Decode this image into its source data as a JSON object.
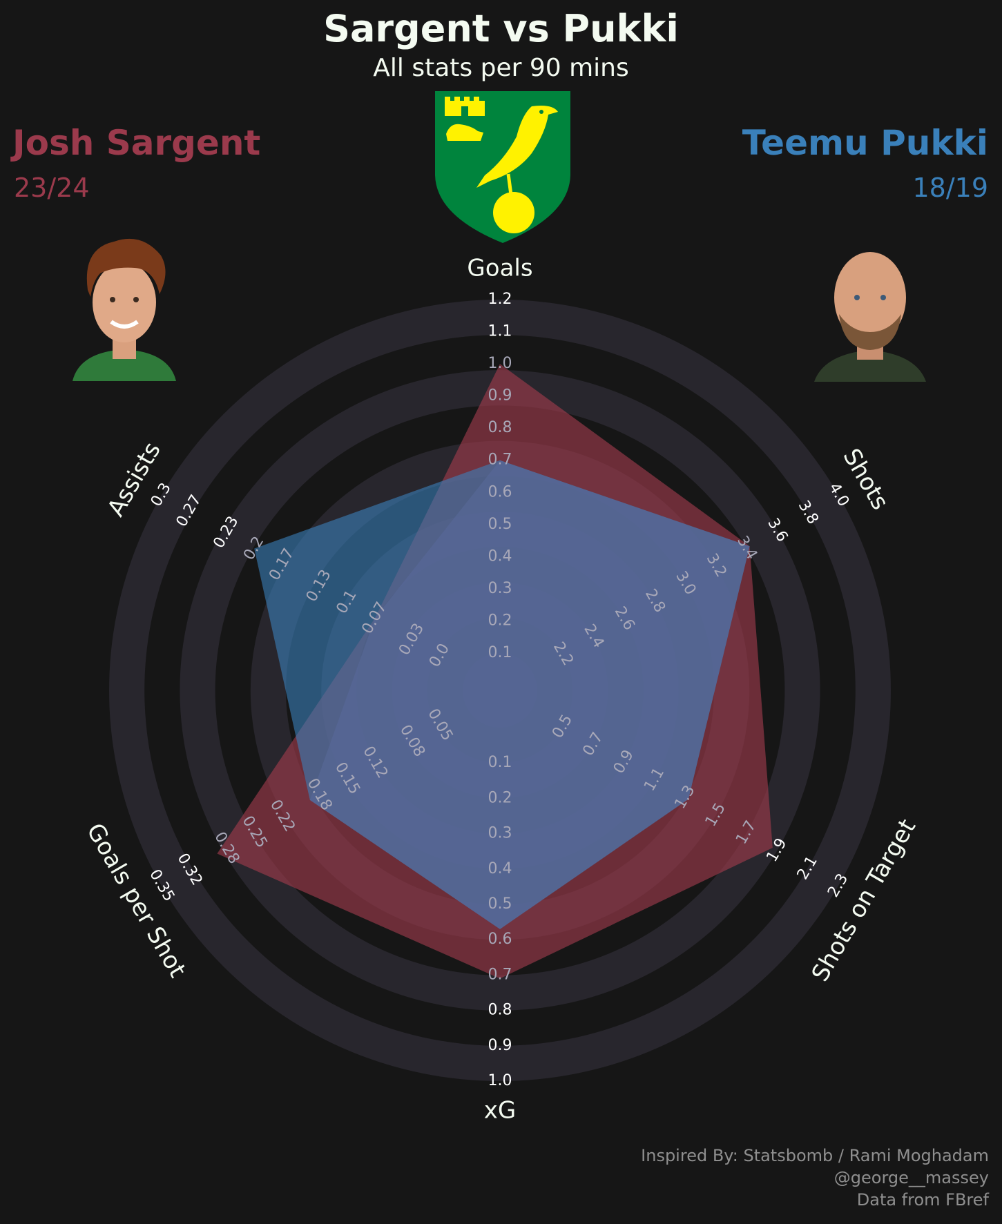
{
  "header": {
    "title": "Sargent vs Pukki",
    "subtitle": "All stats per 90 mins"
  },
  "players": {
    "left": {
      "name": "Josh Sargent",
      "season": "23/24",
      "color": "#9b3a4c"
    },
    "right": {
      "name": "Teemu Pukki",
      "season": "18/19",
      "color": "#3a80ba"
    }
  },
  "club_crest": {
    "icon": "norwich-canary-crest",
    "colors": [
      "#00843d",
      "#fff200"
    ]
  },
  "credits": {
    "line1": "Inspired By: Statsbomb / Rami Moghadam",
    "line2": "@george__massey",
    "line3": "Data from FBref"
  },
  "chart_data": {
    "type": "radar",
    "axes": [
      {
        "label": "Goals",
        "ticks": [
          "0.1",
          "0.2",
          "0.3",
          "0.4",
          "0.5",
          "0.6",
          "0.7",
          "0.8",
          "0.9",
          "1.0",
          "1.1",
          "1.2"
        ],
        "range": [
          0.1,
          1.2
        ]
      },
      {
        "label": "Shots",
        "ticks": [
          "2.2",
          "2.4",
          "2.6",
          "2.8",
          "3.0",
          "3.2",
          "3.4",
          "3.6",
          "3.8",
          "4.0"
        ],
        "range": [
          2.0,
          4.0
        ]
      },
      {
        "label": "Shots on Target",
        "ticks": [
          "0.5",
          "0.7",
          "0.9",
          "1.1",
          "1.3",
          "1.5",
          "1.7",
          "1.9",
          "2.1",
          "2.3"
        ],
        "range": [
          0.3,
          2.3
        ]
      },
      {
        "label": "xG",
        "ticks": [
          "0.1",
          "0.2",
          "0.3",
          "0.4",
          "0.5",
          "0.6",
          "0.7",
          "0.8",
          "0.9",
          "1.0"
        ],
        "range": [
          0.0,
          1.0
        ]
      },
      {
        "label": "Goals per Shot",
        "ticks": [
          "0.05",
          "0.08",
          "0.12",
          "0.15",
          "0.18",
          "0.22",
          "0.25",
          "0.28",
          "0.32",
          "0.35"
        ],
        "range": [
          0.02,
          0.35
        ]
      },
      {
        "label": "Assists",
        "ticks": [
          "0.0",
          "0.03",
          "0.07",
          "0.1",
          "0.13",
          "0.17",
          "0.2",
          "0.23",
          "0.27",
          "0.3"
        ],
        "range": [
          -0.03,
          0.3
        ]
      }
    ],
    "series": [
      {
        "name": "Josh Sargent",
        "color": "#9b3a4c",
        "values": [
          1.0,
          3.42,
          1.87,
          0.71,
          0.29,
          0.07
        ]
      },
      {
        "name": "Teemu Pukki",
        "color": "#3a80ba",
        "values": [
          0.7,
          3.42,
          1.32,
          0.57,
          0.19,
          0.2
        ]
      }
    ]
  }
}
